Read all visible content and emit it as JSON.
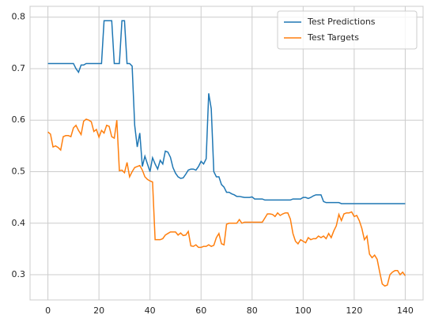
{
  "chart_data": {
    "type": "line",
    "x": [
      0,
      1,
      2,
      3,
      4,
      5,
      6,
      7,
      8,
      9,
      10,
      11,
      12,
      13,
      14,
      15,
      16,
      17,
      18,
      19,
      20,
      21,
      22,
      23,
      24,
      25,
      26,
      27,
      28,
      29,
      30,
      31,
      32,
      33,
      34,
      35,
      36,
      37,
      38,
      39,
      40,
      41,
      42,
      43,
      44,
      45,
      46,
      47,
      48,
      49,
      50,
      51,
      52,
      53,
      54,
      55,
      56,
      57,
      58,
      59,
      60,
      61,
      62,
      63,
      64,
      65,
      66,
      67,
      68,
      69,
      70,
      71,
      72,
      73,
      74,
      75,
      76,
      77,
      78,
      79,
      80,
      81,
      82,
      83,
      84,
      85,
      86,
      87,
      88,
      89,
      90,
      91,
      92,
      93,
      94,
      95,
      96,
      97,
      98,
      99,
      100,
      101,
      102,
      103,
      104,
      105,
      106,
      107,
      108,
      109,
      110,
      111,
      112,
      113,
      114,
      115,
      116,
      117,
      118,
      119,
      120,
      121,
      122,
      123,
      124,
      125,
      126,
      127,
      128,
      129,
      130,
      131,
      132,
      133,
      134,
      135,
      136,
      137,
      138,
      139,
      140
    ],
    "series": [
      {
        "name": "Test Predictions",
        "color": "#1f77b4",
        "values": [
          0.71,
          0.71,
          0.71,
          0.71,
          0.71,
          0.71,
          0.71,
          0.71,
          0.71,
          0.71,
          0.71,
          0.7,
          0.693,
          0.707,
          0.707,
          0.71,
          0.71,
          0.71,
          0.71,
          0.71,
          0.71,
          0.71,
          0.793,
          0.793,
          0.793,
          0.793,
          0.71,
          0.71,
          0.71,
          0.793,
          0.793,
          0.71,
          0.71,
          0.705,
          0.59,
          0.548,
          0.575,
          0.51,
          0.53,
          0.515,
          0.5,
          0.527,
          0.515,
          0.505,
          0.522,
          0.515,
          0.54,
          0.538,
          0.528,
          0.508,
          0.497,
          0.49,
          0.487,
          0.488,
          0.495,
          0.503,
          0.505,
          0.505,
          0.503,
          0.51,
          0.52,
          0.515,
          0.525,
          0.652,
          0.622,
          0.5,
          0.49,
          0.49,
          0.475,
          0.47,
          0.46,
          0.46,
          0.457,
          0.455,
          0.452,
          0.452,
          0.451,
          0.45,
          0.45,
          0.45,
          0.451,
          0.447,
          0.447,
          0.447,
          0.447,
          0.445,
          0.445,
          0.445,
          0.445,
          0.445,
          0.445,
          0.445,
          0.445,
          0.445,
          0.445,
          0.445,
          0.447,
          0.447,
          0.447,
          0.447,
          0.45,
          0.45,
          0.448,
          0.45,
          0.453,
          0.455,
          0.455,
          0.455,
          0.442,
          0.44,
          0.44,
          0.44,
          0.44,
          0.44,
          0.44,
          0.438,
          0.438,
          0.438,
          0.438,
          0.438,
          0.438,
          0.438,
          0.438,
          0.438,
          0.438,
          0.438,
          0.438,
          0.438,
          0.438,
          0.438,
          0.438,
          0.438,
          0.438,
          0.438,
          0.438,
          0.438,
          0.438,
          0.438,
          0.438,
          0.438,
          0.438
        ]
      },
      {
        "name": "Test Targets",
        "color": "#ff7f0e",
        "values": [
          0.577,
          0.573,
          0.548,
          0.55,
          0.547,
          0.542,
          0.568,
          0.57,
          0.57,
          0.568,
          0.585,
          0.59,
          0.58,
          0.572,
          0.598,
          0.602,
          0.6,
          0.597,
          0.578,
          0.582,
          0.567,
          0.58,
          0.575,
          0.59,
          0.588,
          0.568,
          0.565,
          0.6,
          0.502,
          0.503,
          0.498,
          0.518,
          0.49,
          0.5,
          0.508,
          0.51,
          0.512,
          0.503,
          0.49,
          0.485,
          0.482,
          0.48,
          0.368,
          0.368,
          0.368,
          0.37,
          0.377,
          0.38,
          0.383,
          0.383,
          0.383,
          0.377,
          0.381,
          0.376,
          0.377,
          0.384,
          0.356,
          0.355,
          0.358,
          0.353,
          0.353,
          0.355,
          0.355,
          0.358,
          0.355,
          0.357,
          0.372,
          0.38,
          0.36,
          0.358,
          0.398,
          0.4,
          0.4,
          0.4,
          0.4,
          0.407,
          0.4,
          0.402,
          0.402,
          0.402,
          0.402,
          0.402,
          0.402,
          0.402,
          0.402,
          0.41,
          0.418,
          0.418,
          0.417,
          0.413,
          0.42,
          0.415,
          0.418,
          0.42,
          0.42,
          0.408,
          0.38,
          0.365,
          0.36,
          0.368,
          0.365,
          0.362,
          0.372,
          0.368,
          0.37,
          0.37,
          0.375,
          0.372,
          0.375,
          0.37,
          0.38,
          0.372,
          0.385,
          0.395,
          0.417,
          0.405,
          0.418,
          0.42,
          0.42,
          0.422,
          0.413,
          0.415,
          0.405,
          0.39,
          0.368,
          0.375,
          0.34,
          0.333,
          0.338,
          0.33,
          0.305,
          0.282,
          0.278,
          0.28,
          0.3,
          0.305,
          0.308,
          0.308,
          0.3,
          0.305,
          0.298
        ]
      }
    ],
    "xlim": [
      -7,
      147
    ],
    "ylim": [
      0.251,
      0.821
    ],
    "xticks": [
      0,
      20,
      40,
      60,
      80,
      100,
      120,
      140
    ],
    "yticks": [
      0.3,
      0.4,
      0.5,
      0.6,
      0.7,
      0.8
    ],
    "grid": true,
    "legend": "upper right"
  }
}
